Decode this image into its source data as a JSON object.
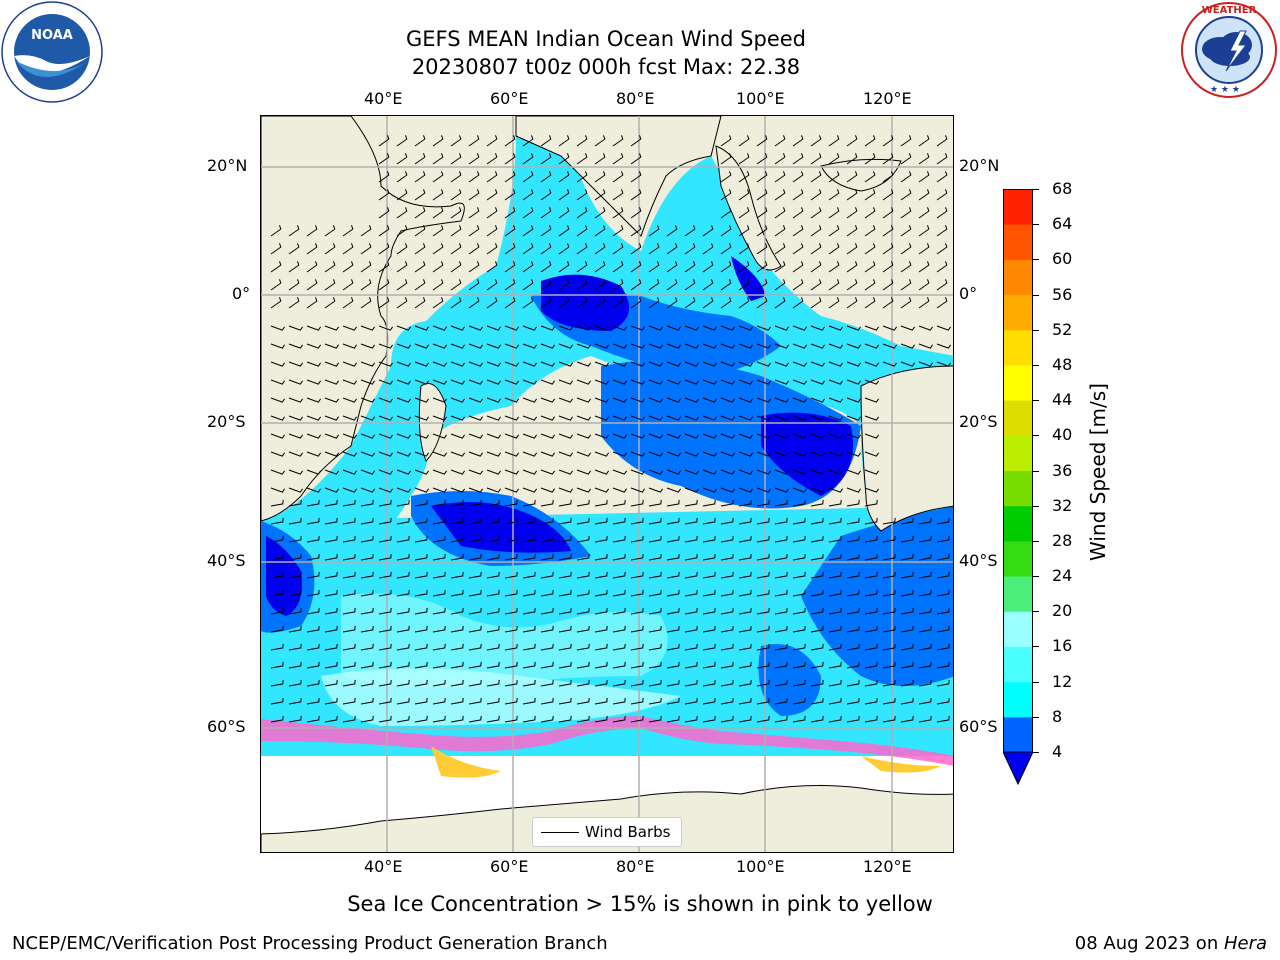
{
  "header": {
    "title_line1": "GEFS MEAN Indian Ocean Wind Speed",
    "title_line2": "20230807 t00z 000h fcst   Max: 22.38"
  },
  "logos": {
    "noaa_text": "NOAA",
    "noaa_ring_text": "NATIONAL OCEANIC AND ATMOSPHERIC ADMINISTRATION · U.S. DEPARTMENT OF COMMERCE",
    "nws_ring_text": "NATIONAL WEATHER SERVICE"
  },
  "map": {
    "lon_ticks": [
      "40°E",
      "60°E",
      "80°E",
      "100°E",
      "120°E"
    ],
    "lat_ticks": [
      "20°N",
      "0°",
      "20°S",
      "40°S",
      "60°S"
    ],
    "lon_range": [
      20,
      130
    ],
    "lat_range": [
      -77,
      28
    ],
    "lon_values": [
      40,
      60,
      80,
      100,
      120
    ],
    "lat_values": [
      20,
      0,
      -20,
      -40,
      -60
    ],
    "legend_label": "Wind Barbs",
    "land_color": "#efeedc",
    "ocean_color": "#ffffff"
  },
  "colorbar": {
    "label": "Wind Speed [m/s]",
    "ticks": [
      "68",
      "64",
      "60",
      "56",
      "52",
      "48",
      "44",
      "40",
      "36",
      "32",
      "28",
      "24",
      "20",
      "16",
      "12",
      "8",
      "4"
    ],
    "colors": [
      "#0000ee",
      "#0065ff",
      "#00ffff",
      "#4cffff",
      "#99ffff",
      "#4cee7a",
      "#33dd11",
      "#00cc00",
      "#77dd00",
      "#bbee00",
      "#dddd00",
      "#ffff00",
      "#ffdd00",
      "#ffaa00",
      "#ff8800",
      "#ff5500",
      "#ff2200",
      "#ff0000"
    ]
  },
  "caption": "Sea Ice Concentration > 15% is shown in pink to yellow",
  "footer": {
    "left": "NCEP/EMC/Verification Post Processing Product Generation Branch",
    "right_prefix": "08 Aug 2023 on ",
    "right_machine": "Hera"
  }
}
